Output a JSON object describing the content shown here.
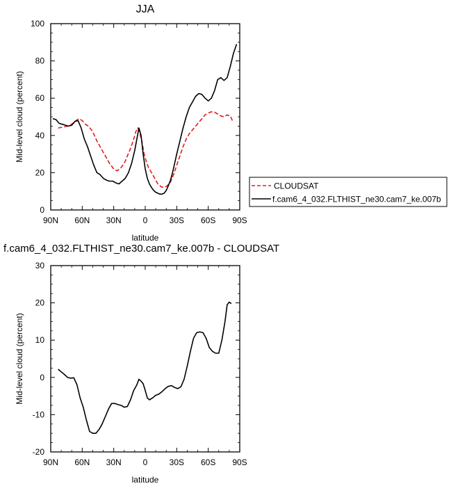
{
  "chart_data": [
    {
      "type": "line",
      "title": "JJA",
      "xlabel": "latitude",
      "ylabel": "Mid-level cloud (percent)",
      "xlim": [
        90,
        -90
      ],
      "ylim": [
        0,
        100
      ],
      "x_ticks": [
        "90N",
        "60N",
        "30N",
        "0",
        "30S",
        "60S",
        "90S"
      ],
      "y_ticks": [
        "0",
        "20",
        "40",
        "60",
        "80",
        "100"
      ],
      "legend_position": "right",
      "series": [
        {
          "name": "CLOUDSAT",
          "color": "#e41a1c",
          "style": "dashed",
          "x": [
            83,
            78,
            74,
            70,
            66,
            63,
            60,
            57,
            54,
            50,
            46,
            42,
            38,
            34,
            30,
            27,
            24,
            20,
            17,
            14,
            11,
            9,
            7,
            5,
            3,
            1,
            -1,
            -3,
            -6,
            -9,
            -12,
            -15,
            -18,
            -21,
            -24,
            -27,
            -30,
            -33,
            -36,
            -39,
            -42,
            -45,
            -48,
            -51,
            -54,
            -57,
            -60,
            -63,
            -66,
            -69,
            -72,
            -75,
            -78,
            -81,
            -83
          ],
          "y": [
            44,
            44.5,
            45,
            46,
            48,
            49,
            48,
            46,
            45,
            42,
            37,
            33,
            29,
            25,
            22,
            21,
            22,
            25,
            29,
            33,
            38,
            42,
            44,
            41,
            36,
            30,
            26,
            23,
            20,
            17,
            14,
            12.5,
            12,
            13,
            15,
            19,
            24,
            29,
            34,
            38,
            41,
            43,
            45,
            47,
            49,
            51,
            52,
            52.7,
            52.5,
            51.5,
            50.5,
            50,
            51,
            50.5,
            48
          ]
        },
        {
          "name": "f.cam6_4_032.FLTHIST_ne30.cam7_ke.007b",
          "color": "#000000",
          "style": "solid",
          "x": [
            88,
            85,
            82,
            79,
            76,
            73,
            70,
            67,
            64,
            61,
            58,
            55,
            52,
            49,
            46,
            43,
            40,
            37,
            34,
            31,
            28,
            25,
            22,
            19,
            16,
            13,
            10,
            8,
            6,
            4,
            2,
            0,
            -2,
            -4,
            -6,
            -8,
            -10,
            -12,
            -14,
            -16,
            -18,
            -20,
            -22,
            -24,
            -26,
            -28,
            -30,
            -33,
            -36,
            -39,
            -42,
            -45,
            -48,
            -51,
            -54,
            -57,
            -60,
            -63,
            -66,
            -69,
            -72,
            -75,
            -78,
            -81,
            -84,
            -87
          ],
          "y": [
            49,
            48.5,
            46.5,
            46,
            45.5,
            45,
            45.5,
            47.5,
            48,
            44,
            38,
            34,
            29,
            24,
            20,
            19,
            17,
            16,
            15.5,
            15.5,
            14.5,
            14,
            15.5,
            17,
            20,
            25,
            32,
            38,
            44,
            40,
            30,
            22,
            17,
            14,
            12,
            10.5,
            9.5,
            9,
            8.5,
            8.5,
            9,
            10.5,
            13,
            16,
            20,
            25,
            30,
            37,
            44,
            50,
            55,
            58,
            61,
            62.5,
            62,
            60,
            58.5,
            60,
            64,
            70,
            71,
            69.5,
            71,
            77,
            84,
            89
          ]
        }
      ]
    },
    {
      "type": "line",
      "title": "f.cam6_4_032.FLTHIST_ne30.cam7_ke.007b - CLOUDSAT",
      "xlabel": "latitude",
      "ylabel": "Mid-level cloud (percent)",
      "xlim": [
        90,
        -90
      ],
      "ylim": [
        -20,
        30
      ],
      "x_ticks": [
        "90N",
        "60N",
        "30N",
        "0",
        "30S",
        "60S",
        "90S"
      ],
      "y_ticks": [
        "-20",
        "-10",
        "0",
        "10",
        "20",
        "30"
      ],
      "series": [
        {
          "color": "#000000",
          "style": "solid",
          "x": [
            83,
            80,
            77,
            74,
            71,
            68,
            65,
            62,
            59,
            56,
            53,
            50,
            47,
            44,
            41,
            38,
            35,
            32,
            29,
            26,
            23,
            20,
            17,
            14,
            11,
            8,
            6,
            4,
            2,
            0,
            -2,
            -4,
            -7,
            -10,
            -13,
            -16,
            -19,
            -22,
            -25,
            -28,
            -31,
            -34,
            -37,
            -40,
            -43,
            -46,
            -49,
            -52,
            -55,
            -58,
            -61,
            -64,
            -67,
            -70,
            -73,
            -76,
            -78,
            -80,
            -82
          ],
          "y": [
            2.2,
            1.5,
            0.8,
            0,
            -0.2,
            -0.1,
            -2,
            -5.5,
            -8,
            -11.5,
            -14.5,
            -15,
            -15,
            -14,
            -12.5,
            -10.5,
            -8.5,
            -7,
            -7,
            -7.3,
            -7.5,
            -8,
            -7.8,
            -6,
            -3.5,
            -2,
            -0.5,
            -1,
            -1.7,
            -3.5,
            -5.5,
            -6,
            -5.5,
            -4.8,
            -4.5,
            -3.8,
            -3,
            -2.4,
            -2.2,
            -2.7,
            -3,
            -2.5,
            -0.5,
            3,
            7,
            10.5,
            12,
            12.2,
            12,
            10.5,
            8,
            7,
            6.5,
            6.5,
            10,
            15,
            19.5,
            20.2,
            19.8
          ]
        }
      ]
    }
  ]
}
